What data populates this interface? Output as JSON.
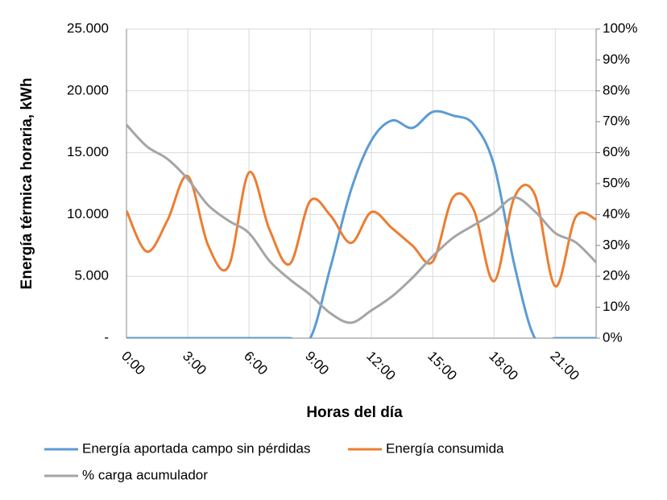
{
  "chart_data": {
    "type": "line",
    "y_label": "Energía térmica horaria, kWh",
    "x_label": "Horas del día",
    "categories": [
      "0:00",
      null,
      null,
      "3:00",
      null,
      null,
      "6:00",
      null,
      null,
      "9:00",
      null,
      null,
      "12:00",
      null,
      null,
      "15:00",
      null,
      null,
      "18:00",
      null,
      null,
      "21:00",
      null,
      null
    ],
    "series": [
      {
        "name": "Energía aportada campo sin pérdidas",
        "color": "#5b9bd5",
        "values": [
          0,
          0,
          0,
          0,
          0,
          0,
          0,
          0,
          0,
          0,
          5800,
          12000,
          16000,
          17600,
          17000,
          18300,
          18000,
          17300,
          14000,
          5900,
          0,
          0,
          0,
          0
        ]
      },
      {
        "name": "Energía consumida",
        "color": "#ed7d31",
        "values": [
          10300,
          7000,
          9500,
          13100,
          7500,
          5800,
          13400,
          8800,
          6000,
          11100,
          9900,
          7700,
          10200,
          8900,
          7500,
          6200,
          11400,
          10400,
          4600,
          11400,
          11600,
          4200,
          9800,
          9600
        ]
      },
      {
        "name": "% carga acumulador",
        "color": "#a5a5a5",
        "axis": "y2",
        "values": [
          69,
          62,
          58,
          51.5,
          43,
          38,
          34,
          25,
          19,
          14,
          8,
          5,
          9,
          13.5,
          19.5,
          26.5,
          32.5,
          36.5,
          40.5,
          45.5,
          41,
          34,
          31,
          24.5
        ]
      }
    ],
    "ylim": [
      0,
      25000
    ],
    "yticks": [
      {
        "value": 0,
        "label": "-"
      },
      {
        "value": 5000,
        "label": "5.000"
      },
      {
        "value": 10000,
        "label": "10.000"
      },
      {
        "value": 15000,
        "label": "15.000"
      },
      {
        "value": 20000,
        "label": "20.000"
      },
      {
        "value": 25000,
        "label": "25.000"
      }
    ],
    "y2lim": [
      0,
      100
    ],
    "y2ticks": [
      {
        "value": 0,
        "label": "0%"
      },
      {
        "value": 10,
        "label": "10%"
      },
      {
        "value": 20,
        "label": "20%"
      },
      {
        "value": 30,
        "label": "30%"
      },
      {
        "value": 40,
        "label": "40%"
      },
      {
        "value": 50,
        "label": "50%"
      },
      {
        "value": 60,
        "label": "60%"
      },
      {
        "value": 70,
        "label": "70%"
      },
      {
        "value": 80,
        "label": "80%"
      },
      {
        "value": 90,
        "label": "90%"
      },
      {
        "value": 100,
        "label": "100%"
      }
    ],
    "grid": true,
    "legend": "bottom"
  }
}
